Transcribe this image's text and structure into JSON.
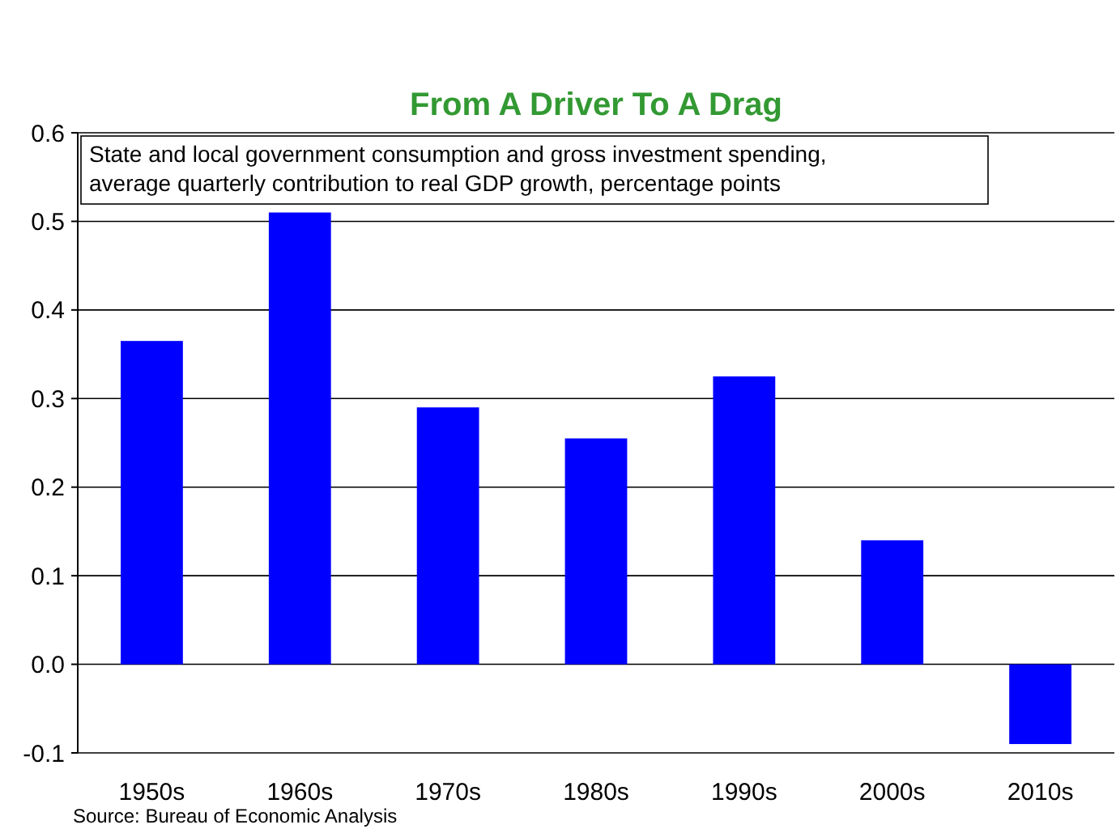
{
  "chart_data": {
    "type": "bar",
    "title": "From A Driver To A Drag",
    "subtitle": "State and local government consumption and gross investment spending,\naverage quarterly contribution to real GDP growth, percentage points",
    "categories": [
      "1950s",
      "1960s",
      "1970s",
      "1980s",
      "1990s",
      "2000s",
      "2010s"
    ],
    "values": [
      0.365,
      0.51,
      0.29,
      0.255,
      0.325,
      0.14,
      -0.09
    ],
    "color": "#0000ff",
    "ylim": [
      -0.1,
      0.6
    ],
    "yticks": [
      -0.1,
      {
        "value": 0,
        "label": "0.0"
      },
      0.1,
      0.2,
      0.3,
      0.4,
      0.5,
      0.6
    ],
    "grid": "y",
    "annotations": [
      "Source: Bureau of Economic Analysis"
    ]
  }
}
